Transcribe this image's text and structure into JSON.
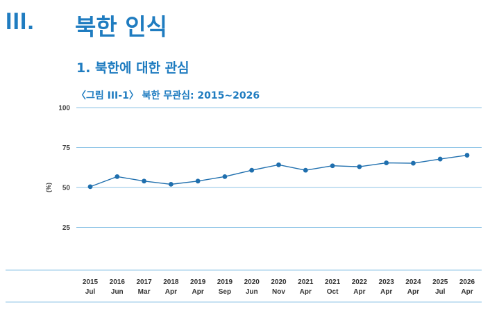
{
  "header": {
    "section_number": "III.",
    "section_title": "북한 인식",
    "subsection": "1.  북한에 대한 관심",
    "figure_caption": "〈그림 III-1〉 북한 무관심: 2015~2026"
  },
  "colors": {
    "accent": "#1f7cc0",
    "line": "#1f6fae",
    "grid": "#8cc3e6"
  },
  "chart_data": {
    "type": "line",
    "title": "〈그림 III-1〉 북한 무관심: 2015~2026",
    "ylabel": "(%)",
    "xlabel": "",
    "ylim": [
      0,
      100
    ],
    "yticks": [
      25,
      50,
      75,
      100
    ],
    "grid": true,
    "categories": [
      [
        "2015",
        "Jul"
      ],
      [
        "2016",
        "Jun"
      ],
      [
        "2017",
        "Mar"
      ],
      [
        "2018",
        "Apr"
      ],
      [
        "2019",
        "Apr"
      ],
      [
        "2019",
        "Sep"
      ],
      [
        "2020",
        "Jun"
      ],
      [
        "2020",
        "Nov"
      ],
      [
        "2021",
        "Apr"
      ],
      [
        "2021",
        "Oct"
      ],
      [
        "2022",
        "Apr"
      ],
      [
        "2023",
        "Apr"
      ],
      [
        "2024",
        "Apr"
      ],
      [
        "2025",
        "Jul"
      ],
      [
        "2026",
        "Apr"
      ]
    ],
    "series": [
      {
        "values": [
          50.5,
          56.8,
          54,
          52,
          54,
          56.8,
          60.8,
          64.2,
          60.8,
          63.6,
          63,
          65.4,
          65.2,
          67.8,
          70.2
        ]
      }
    ]
  }
}
